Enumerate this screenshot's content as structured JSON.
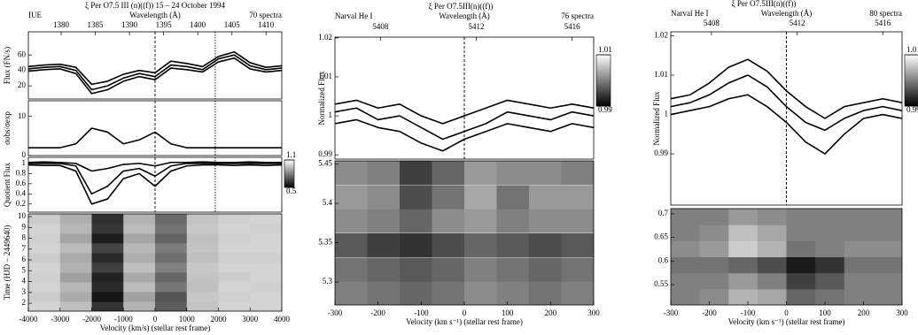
{
  "chart_data": [
    {
      "type": "line",
      "title": "ξ Per  O7.5 III (n)((f))    15 – 24 October 1994",
      "instrument": "IUE",
      "x2label": "Wavelength (Å)",
      "note": "70 spectra",
      "ylabel": "Flux (FN/s)",
      "xlim": [
        -4000,
        4000
      ],
      "x2lim": [
        1375.2,
        1412.3
      ],
      "x2ticks": [
        1380,
        1385,
        1390,
        1395,
        1400,
        1405,
        1410
      ],
      "ylim": [
        3,
        90
      ],
      "yticks": [
        20,
        40,
        60
      ],
      "vlines": [
        0,
        1900
      ],
      "x": [
        -4000,
        -3500,
        -3000,
        -2500,
        -2000,
        -1500,
        -1000,
        -500,
        0,
        500,
        1000,
        1500,
        2000,
        2500,
        3000,
        3500,
        4000
      ],
      "series": [
        {
          "color": "#000000",
          "values": [
            45,
            47,
            48,
            44,
            22,
            26,
            35,
            40,
            37,
            52,
            49,
            45,
            58,
            64,
            50,
            44,
            46
          ]
        },
        {
          "color": "#000000",
          "values": [
            42,
            44,
            45,
            40,
            15,
            20,
            30,
            36,
            32,
            47,
            45,
            41,
            55,
            60,
            46,
            41,
            43
          ]
        },
        {
          "color": "#000000",
          "values": [
            39,
            41,
            42,
            36,
            10,
            15,
            26,
            32,
            28,
            43,
            41,
            38,
            51,
            56,
            42,
            38,
            40
          ]
        }
      ]
    },
    {
      "type": "line",
      "ylabel": "σobs/σexp",
      "xlim": [
        -4000,
        4000
      ],
      "ylim": [
        0,
        14
      ],
      "yticks": [
        0,
        10
      ],
      "vlines": [
        0,
        1900
      ],
      "x": [
        -4000,
        -3500,
        -3000,
        -2500,
        -2000,
        -1500,
        -1000,
        -500,
        0,
        500,
        1000,
        1500,
        2000,
        2500,
        3000,
        3500,
        4000
      ],
      "series": [
        {
          "color": "#000000",
          "values": [
            2,
            2,
            2,
            3,
            7,
            6,
            3,
            4,
            6,
            3,
            2,
            2,
            2,
            2,
            2,
            2,
            2
          ]
        }
      ]
    },
    {
      "type": "line",
      "ylabel": "Quotient Flux",
      "xlim": [
        -4000,
        4000
      ],
      "ylim": [
        0.04,
        1.12
      ],
      "yticks": [
        0.2,
        0.4,
        0.6,
        0.8,
        1
      ],
      "vlines": [
        0,
        1900
      ],
      "x": [
        -4000,
        -3500,
        -3000,
        -2500,
        -2000,
        -1500,
        -1000,
        -500,
        0,
        500,
        1000,
        1500,
        2000,
        2500,
        3000,
        3500,
        4000
      ],
      "series": [
        {
          "color": "#000000",
          "values": [
            1.02,
            1.03,
            1.02,
            1.0,
            0.85,
            0.9,
            0.98,
            1.0,
            0.95,
            1.02,
            1.02,
            1.03,
            1.02,
            1.02,
            1.03,
            1.02,
            1.02
          ]
        },
        {
          "color": "#000000",
          "values": [
            1,
            1,
            1,
            0.95,
            0.4,
            0.55,
            0.85,
            0.9,
            0.75,
            0.95,
            1,
            1,
            1,
            1,
            1,
            1,
            1
          ]
        },
        {
          "color": "#000000",
          "values": [
            0.97,
            0.96,
            0.96,
            0.85,
            0.2,
            0.3,
            0.7,
            0.8,
            0.55,
            0.85,
            0.95,
            0.97,
            0.97,
            0.96,
            0.97,
            0.96,
            0.97
          ]
        }
      ]
    },
    {
      "type": "heatmap",
      "ylabel": "Time (HJD − 2449640)",
      "xlabel": "Velocity (km/s)    (stellar rest frame)",
      "xlim": [
        -4000,
        4000
      ],
      "xticks": [
        -4000,
        -3000,
        -2000,
        -1000,
        0,
        1000,
        2000,
        3000,
        4000
      ],
      "ylim": [
        1.27,
        10.25
      ],
      "yticks": [
        2,
        3,
        4,
        5,
        6,
        7,
        8,
        9,
        10
      ],
      "zlim": [
        0.5,
        1.1
      ],
      "zticks": [
        0.5,
        1.1
      ],
      "x": [
        -3500,
        -2500,
        -1500,
        -500,
        500,
        1500,
        2500,
        3500
      ],
      "y": [
        1.72,
        2.62,
        3.52,
        4.42,
        5.32,
        6.22,
        7.12,
        8.02,
        8.92,
        9.82
      ],
      "z": [
        [
          1.0,
          0.95,
          0.62,
          0.92,
          0.72,
          0.96,
          1.0,
          1.0
        ],
        [
          0.98,
          0.9,
          0.55,
          0.88,
          0.7,
          0.97,
          0.99,
          1.0
        ],
        [
          1.0,
          0.93,
          0.6,
          0.94,
          0.78,
          0.95,
          1.0,
          0.99
        ],
        [
          0.99,
          0.88,
          0.58,
          0.9,
          0.74,
          0.96,
          0.98,
          1.0
        ],
        [
          1.0,
          0.92,
          0.65,
          0.95,
          0.8,
          0.97,
          1.0,
          1.0
        ],
        [
          0.98,
          0.9,
          0.6,
          0.91,
          0.76,
          0.95,
          0.99,
          0.99
        ],
        [
          1.0,
          0.94,
          0.66,
          0.93,
          0.79,
          0.96,
          1.0,
          1.0
        ],
        [
          0.99,
          0.89,
          0.57,
          0.89,
          0.73,
          0.95,
          0.99,
          1.0
        ],
        [
          1.0,
          0.93,
          0.63,
          0.94,
          0.77,
          0.97,
          1.0,
          0.99
        ],
        [
          0.98,
          0.91,
          0.61,
          0.92,
          0.75,
          0.96,
          0.99,
          1.0
        ]
      ]
    },
    {
      "type": "line",
      "title": "ξ Per   O7.5III(n)((f))",
      "instrument": "Narval   He I",
      "x2label": "Wavelength (Å)",
      "note": "76 spectra",
      "ylabel": "Normalized Flux",
      "xlim": [
        -300,
        300
      ],
      "x2lim": [
        5406.1,
        5416.9
      ],
      "x2ticks": [
        5408,
        5412,
        5416
      ],
      "ylim": [
        0.9889,
        1.0202
      ],
      "yticks": [
        0.99,
        1,
        1.01,
        1.02
      ],
      "vlines": [
        0
      ],
      "x": [
        -300,
        -250,
        -200,
        -150,
        -100,
        -50,
        0,
        50,
        100,
        150,
        200,
        250,
        300
      ],
      "series": [
        {
          "color": "#000000",
          "values": [
            1.003,
            1.004,
            1.002,
            1.003,
            1.0,
            0.998,
            1.0,
            1.002,
            1.004,
            1.003,
            1.002,
            1.003,
            1.002
          ]
        },
        {
          "color": "#000000",
          "values": [
            1.001,
            1.002,
            0.999,
            1.0,
            0.997,
            0.994,
            0.996,
            0.998,
            1.001,
            1.0,
            0.999,
            1.001,
            1.0
          ]
        },
        {
          "color": "#000000",
          "values": [
            0.998,
            0.999,
            0.997,
            0.996,
            0.993,
            0.991,
            0.994,
            0.996,
            0.998,
            0.997,
            0.996,
            0.998,
            0.997
          ]
        }
      ]
    },
    {
      "type": "heatmap",
      "xlabel": "Velocity (km s⁻¹)   (stellar rest frame)",
      "xlim": [
        -300,
        300
      ],
      "xticks": [
        -300,
        -200,
        -100,
        0,
        100,
        200,
        300
      ],
      "ylim": [
        5.271,
        5.454
      ],
      "yticks": [
        5.3,
        5.35,
        5.4,
        5.45
      ],
      "zlim": [
        0.99,
        1.01
      ],
      "zticks": [
        0.99,
        1.01
      ],
      "x": [
        -262.5,
        -187.5,
        -112.5,
        -37.5,
        37.5,
        112.5,
        187.5,
        262.5
      ],
      "y": [
        5.286,
        5.316,
        5.347,
        5.378,
        5.408,
        5.439
      ],
      "z": [
        [
          1.0,
          0.999,
          0.998,
          0.999,
          1.001,
          1.0,
          0.999,
          1.0
        ],
        [
          0.999,
          0.998,
          0.997,
          0.998,
          1.0,
          0.999,
          0.998,
          0.999
        ],
        [
          0.997,
          0.995,
          0.994,
          0.996,
          0.998,
          0.997,
          0.996,
          0.997
        ],
        [
          1.001,
          1.0,
          0.998,
          1.001,
          1.002,
          1.0,
          1.001,
          1.001
        ],
        [
          1.002,
          1.001,
          0.996,
          0.999,
          1.003,
          0.999,
          1.002,
          1.002
        ],
        [
          1.001,
          1.0,
          0.995,
          0.998,
          1.002,
          1.001,
          1.001,
          1.0
        ]
      ]
    },
    {
      "type": "line",
      "title": "ξ Per   O7.5III(n)((f))",
      "instrument": "Narval   He I",
      "x2label": "Wavelength (Å)",
      "note": "80 spectra",
      "ylabel": "Normalized Flux",
      "xlim": [
        -300,
        300
      ],
      "x2lim": [
        5406.1,
        5416.9
      ],
      "x2ticks": [
        5408,
        5412,
        5416
      ],
      "ylim": [
        0.977,
        1.021
      ],
      "yticks": [
        0.99,
        1,
        1.01,
        1.02
      ],
      "vlines": [
        0
      ],
      "x": [
        -300,
        -250,
        -200,
        -150,
        -100,
        -50,
        0,
        50,
        100,
        150,
        200,
        250,
        300
      ],
      "series": [
        {
          "color": "#000000",
          "values": [
            1.004,
            1.005,
            1.008,
            1.012,
            1.014,
            1.011,
            1.006,
            1.002,
            0.999,
            1.002,
            1.003,
            1.004,
            1.003
          ]
        },
        {
          "color": "#000000",
          "values": [
            1.002,
            1.003,
            1.005,
            1.008,
            1.01,
            1.007,
            1.002,
            0.998,
            0.996,
            0.999,
            1.001,
            1.002,
            1.001
          ]
        },
        {
          "color": "#000000",
          "values": [
            1.0,
            1.001,
            1.002,
            1.004,
            1.005,
            1.002,
            0.998,
            0.993,
            0.99,
            0.995,
            0.999,
            1.0,
            0.999
          ]
        }
      ]
    },
    {
      "type": "heatmap",
      "xlabel": "Velocity (km s⁻¹)   (stellar rest frame)",
      "xlim": [
        -300,
        300
      ],
      "xticks": [
        -300,
        -200,
        -100,
        0,
        100,
        200,
        300
      ],
      "ylim": [
        0.507,
        0.711
      ],
      "yticks": [
        0.55,
        0.6,
        0.65,
        0.7
      ],
      "zlim": [
        0.99,
        1.01
      ],
      "zticks": [
        0.99,
        1.01
      ],
      "x": [
        -262.5,
        -187.5,
        -112.5,
        -37.5,
        37.5,
        112.5,
        187.5,
        262.5
      ],
      "y": [
        0.524,
        0.558,
        0.592,
        0.626,
        0.66,
        0.694
      ],
      "z": [
        [
          1.0,
          1.001,
          1.004,
          1.003,
          0.998,
          0.999,
          1.0,
          1.0
        ],
        [
          1.0,
          1.0,
          1.002,
          1.0,
          0.995,
          0.997,
          1.0,
          1.0
        ],
        [
          0.999,
          0.999,
          0.998,
          0.996,
          0.992,
          0.994,
          0.999,
          0.999
        ],
        [
          1.001,
          1.002,
          1.006,
          1.004,
          0.999,
          1.0,
          1.001,
          1.001
        ],
        [
          1.0,
          1.001,
          1.005,
          1.003,
          1.0,
          1.0,
          1.0,
          1.0
        ],
        [
          1.0,
          1.0,
          1.002,
          1.001,
          1.0,
          1.0,
          1.0,
          1.0
        ]
      ]
    }
  ]
}
